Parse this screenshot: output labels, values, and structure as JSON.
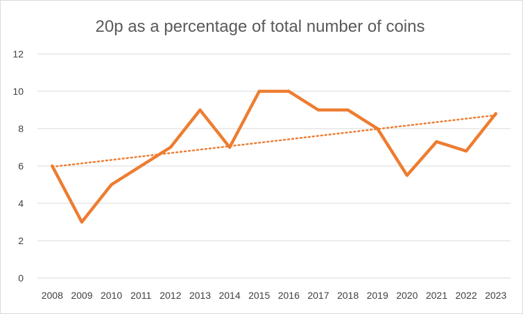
{
  "chart_data": {
    "type": "line",
    "title": "20p as a percentage of total number of coins",
    "xlabel": "",
    "ylabel": "",
    "categories": [
      "2008",
      "2009",
      "2010",
      "2011",
      "2012",
      "2013",
      "2014",
      "2015",
      "2016",
      "2017",
      "2018",
      "2019",
      "2020",
      "2021",
      "2022",
      "2023"
    ],
    "series": [
      {
        "values": [
          6,
          3,
          5,
          6,
          7,
          9,
          7,
          10,
          10,
          9,
          9,
          8,
          5.5,
          7.3,
          6.8,
          8.8
        ],
        "color": "#ED7D31"
      }
    ],
    "trendline": {
      "type": "linear",
      "style": "dotted",
      "color": "#ED7D31"
    },
    "ylim": [
      0,
      12
    ],
    "yticks": [
      0,
      2,
      4,
      6,
      8,
      10,
      12
    ],
    "grid": true,
    "legend": "none"
  }
}
